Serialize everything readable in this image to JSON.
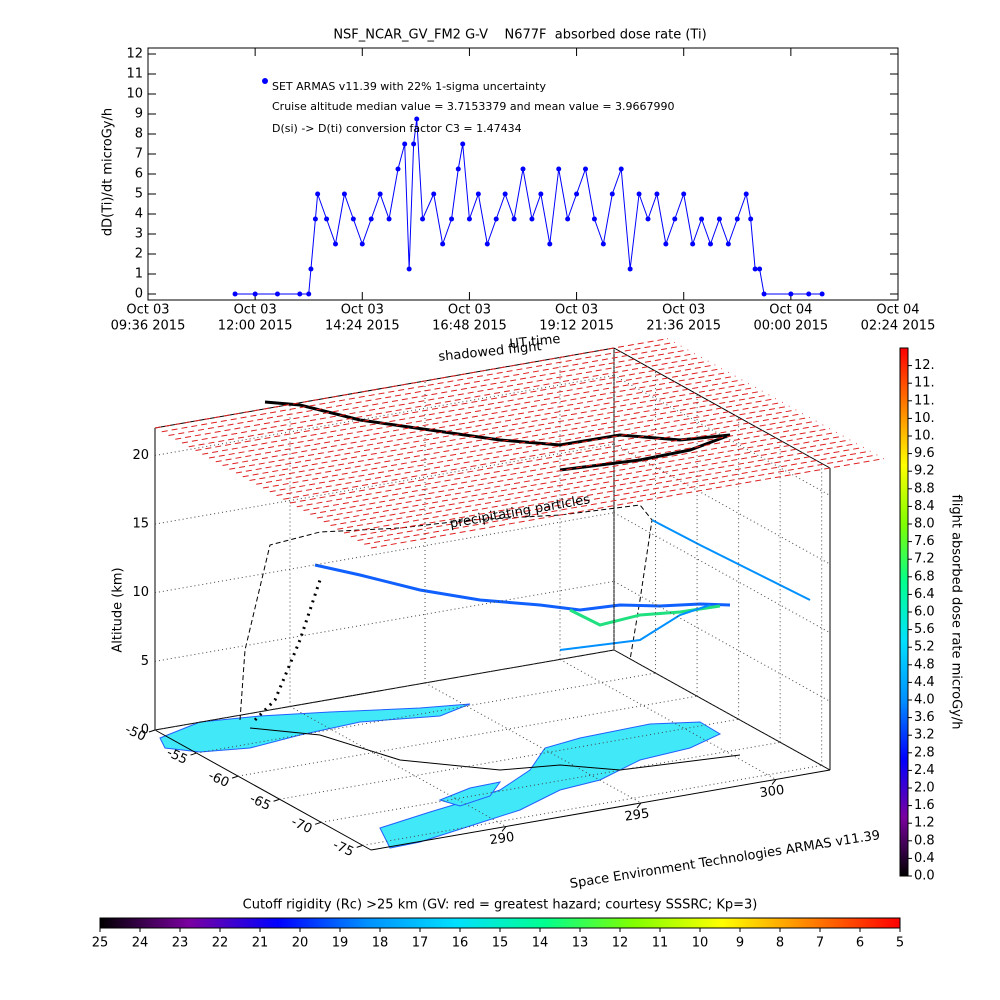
{
  "chart_data": [
    {
      "type": "line",
      "title": "NSF_NCAR_GV_FM2 G-V    N677F  absorbed dose rate (Ti)",
      "ylabel": "dD(Ti)/dt microGy/h",
      "annotations": [
        "Cruise altitude median value = 3.7153379 and mean value = 3.9667990",
        "D(si) -> D(ti) conversion factor C3 = 1.47434"
      ],
      "xlim": [
        9.6,
        26.4
      ],
      "xticks": [
        {
          "value": 9.6,
          "label": [
            "Oct 03",
            "09:36 2015"
          ]
        },
        {
          "value": 12,
          "label": [
            "Oct 03",
            "12:00 2015"
          ]
        },
        {
          "value": 14.4,
          "label": [
            "Oct 03",
            "14:24 2015"
          ]
        },
        {
          "value": 16.8,
          "label": [
            "Oct 03",
            "16:48 2015"
          ]
        },
        {
          "value": 19.2,
          "label": [
            "Oct 03",
            "19:12 2015"
          ]
        },
        {
          "value": 21.6,
          "label": [
            "Oct 03",
            "21:36 2015"
          ]
        },
        {
          "value": 24,
          "label": [
            "Oct 04",
            "00:00 2015"
          ]
        },
        {
          "value": 26.4,
          "label": [
            "Oct 04",
            "02:24 2015"
          ]
        }
      ],
      "ylim": [
        -0.3,
        12.3
      ],
      "yticks": [
        0,
        1,
        2,
        3,
        4,
        5,
        6,
        7,
        8,
        9,
        10,
        11,
        12
      ],
      "x": [
        11.55,
        12.0,
        12.5,
        13.0,
        13.2,
        13.25,
        13.35,
        13.4,
        13.6,
        13.8,
        14.0,
        14.2,
        14.4,
        14.6,
        14.8,
        15.0,
        15.2,
        15.35,
        15.45,
        15.55,
        15.62,
        15.75,
        16.0,
        16.2,
        16.4,
        16.55,
        16.65,
        16.8,
        17.0,
        17.2,
        17.4,
        17.6,
        17.8,
        18.0,
        18.2,
        18.4,
        18.6,
        18.8,
        19.0,
        19.2,
        19.4,
        19.6,
        19.8,
        20.0,
        20.2,
        20.4,
        20.6,
        20.8,
        21.0,
        21.2,
        21.4,
        21.6,
        21.8,
        22.0,
        22.2,
        22.4,
        22.6,
        22.8,
        23.0,
        23.1,
        23.2,
        23.3,
        23.4,
        24.0,
        24.4,
        24.7
      ],
      "series": [
        {
          "name": "SET ARMAS v11.39 with 22% 1-sigma uncertainty",
          "color": "#0000ff",
          "values": [
            0,
            0,
            0,
            0,
            0,
            1.25,
            3.75,
            5,
            3.75,
            2.5,
            5,
            3.75,
            2.5,
            3.75,
            5,
            3.75,
            6.25,
            7.5,
            1.25,
            7.5,
            8.75,
            3.75,
            5,
            2.5,
            3.75,
            6.25,
            7.5,
            3.75,
            5,
            2.5,
            3.75,
            5,
            3.75,
            6.25,
            3.75,
            5,
            2.5,
            6.25,
            3.75,
            5,
            6.25,
            3.75,
            2.5,
            5,
            6.25,
            1.25,
            5,
            3.75,
            5,
            2.5,
            3.75,
            5,
            2.5,
            3.75,
            2.5,
            3.75,
            2.5,
            3.75,
            5,
            3.75,
            1.25,
            1.25,
            0,
            0,
            0,
            0
          ]
        }
      ]
    },
    {
      "type": "scatter3d",
      "zlabel": "Altitude (km)",
      "annotations": [
        "shadowed flight",
        "UT time",
        "precipitating particles",
        "Space Environment Technologies ARMAS v11.39"
      ],
      "xlim": [
        285,
        302
      ],
      "xticks": [
        290,
        295,
        300
      ],
      "ylim": [
        -50,
        -76
      ],
      "yticks": [
        -50,
        -55,
        -60,
        -65,
        -70,
        -75
      ],
      "zlim": [
        0,
        22
      ],
      "zticks": [
        0,
        5,
        10,
        15,
        20
      ],
      "grid": true,
      "colorbar": {
        "label": "flight absorbed dose rate microGy/h",
        "lim": [
          0,
          12
        ],
        "colors": [
          "#000000",
          "#7a00a0",
          "#0000ff",
          "#0090ff",
          "#00e0ff",
          "#00ff90",
          "#80ff00",
          "#ffff00",
          "#ff8000",
          "#ff0000"
        ],
        "ticks": [
          {
            "value": 0,
            "label": "0.0"
          },
          0.4,
          0.8,
          1.2,
          1.6,
          {
            "value": 2,
            "label": "2.0"
          },
          2.4,
          2.8,
          3.2,
          3.6,
          {
            "value": 4,
            "label": "4.0"
          },
          4.4,
          4.8,
          5.2,
          5.6,
          {
            "value": 6,
            "label": "6.0"
          },
          6.4,
          6.8,
          7.2,
          7.6,
          {
            "value": 8,
            "label": "8.0"
          },
          8.4,
          8.8,
          9.2,
          9.6,
          {
            "value": 10,
            "label": "10."
          },
          {
            "value": 10.4,
            "label": "10."
          },
          {
            "value": 10.8,
            "label": "11."
          },
          {
            "value": 11.2,
            "label": "11."
          },
          {
            "value": 11.6,
            "label": "12."
          }
        ]
      },
      "colorbar2": {
        "title": "Cutoff rigidity (Rc) >25 km (GV: red = greatest hazard; courtesy SSSRC; Kp=3)",
        "lim": [
          25,
          5
        ],
        "colors": [
          "#000000",
          "#7a00a0",
          "#0000ff",
          "#0090ff",
          "#00e0ff",
          "#00ff90",
          "#80ff00",
          "#ffff00",
          "#ff8000",
          "#ff0000"
        ],
        "ticks": [
          25,
          24,
          23,
          22,
          21,
          20,
          19,
          18,
          17,
          16,
          15,
          14,
          13,
          12,
          11,
          10,
          9,
          8,
          7,
          6,
          5
        ]
      }
    }
  ]
}
